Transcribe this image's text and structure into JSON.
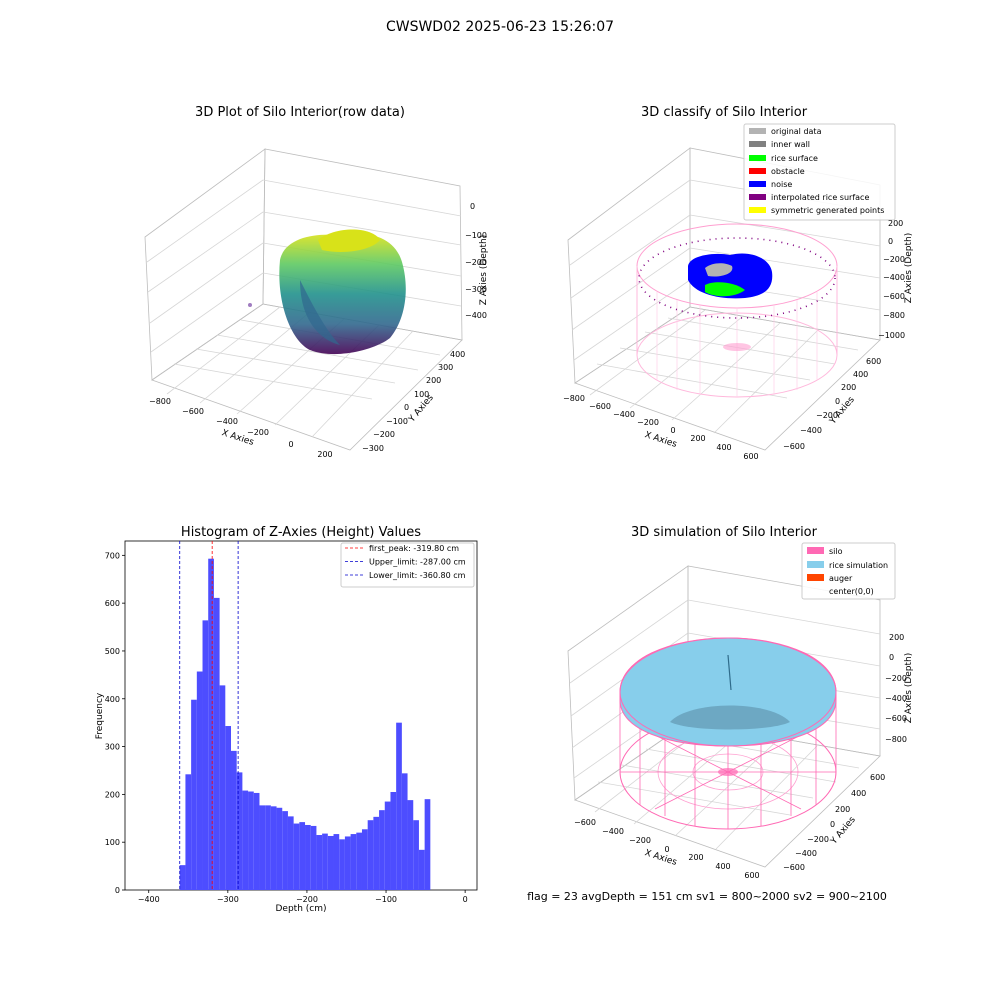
{
  "figure_title": "CWSWD02 2025-06-23 15:26:07",
  "colors": {
    "histogram_bars": "#4d4dff",
    "first_peak_line": "#ff0000",
    "limit_lines": "#0000cc",
    "silo_wireframe": "#ff69b4",
    "rice_simulation": "#87ceeb",
    "auger": "#ff4500"
  },
  "panels": {
    "raw": {
      "title": "3D Plot of Silo Interior(row data)",
      "xlabel": "X Axies",
      "ylabel": "Y Axies",
      "zlabel": "Z Axies (Depth)",
      "xticks": [
        "−800",
        "−600",
        "−400",
        "−200",
        "0",
        "200"
      ],
      "yticks": [
        "−300",
        "−200",
        "−100",
        "0",
        "100",
        "200",
        "300",
        "400"
      ],
      "zticks": [
        "0",
        "−100",
        "−200",
        "−300",
        "−400"
      ],
      "colormap": "viridis"
    },
    "classify": {
      "title": "3D classify of Silo Interior",
      "xlabel": "X Axies",
      "ylabel": "Y Axies",
      "zlabel": "Z Axies (Depth)",
      "xticks": [
        "−800",
        "−600",
        "−400",
        "−200",
        "0",
        "200",
        "400",
        "600"
      ],
      "yticks": [
        "−600",
        "−400",
        "−200",
        "0",
        "200",
        "400",
        "600"
      ],
      "zticks": [
        "200",
        "0",
        "−200",
        "−400",
        "−600",
        "−800",
        "−1000"
      ],
      "legend": [
        {
          "label": "original data",
          "color": "#b3b3b3"
        },
        {
          "label": "inner wall",
          "color": "#808080"
        },
        {
          "label": "rice surface",
          "color": "#00ff00"
        },
        {
          "label": "obstacle",
          "color": "#ff0000"
        },
        {
          "label": "noise",
          "color": "#0000ff"
        },
        {
          "label": "interpolated rice surface",
          "color": "#800080"
        },
        {
          "label": "symmetric generated points",
          "color": "#ffff00"
        }
      ]
    },
    "simulation": {
      "title": "3D simulation of Silo Interior",
      "xlabel": "X Axies",
      "ylabel": "Y Axies",
      "zlabel": "Z Axies (Depth)",
      "xticks": [
        "−600",
        "−400",
        "−200",
        "0",
        "200",
        "400",
        "600"
      ],
      "yticks": [
        "−600",
        "−400",
        "−200",
        "0",
        "200",
        "400",
        "600"
      ],
      "zticks": [
        "200",
        "0",
        "−200",
        "−400",
        "−600",
        "−800"
      ],
      "legend": [
        {
          "label": "silo",
          "color": "#ff69b4"
        },
        {
          "label": "rice simulation",
          "color": "#87ceeb"
        },
        {
          "label": "auger",
          "color": "#ff4500"
        },
        {
          "label": "center(0,0)",
          "color": ""
        }
      ],
      "footer": "flag = 23   avgDepth = 151 cm   sv1 = 800~2000   sv2 = 900~2100"
    }
  },
  "chart_data": {
    "type": "bar",
    "title": "Histogram of Z-Axies (Height) Values",
    "xlabel": "Depth (cm)",
    "ylabel": "Frequency",
    "xlim": [
      -430,
      15
    ],
    "ylim": [
      0,
      730
    ],
    "xticks": [
      -400,
      -300,
      -200,
      -100,
      0
    ],
    "yticks": [
      0,
      100,
      200,
      300,
      400,
      500,
      600,
      700
    ],
    "bin_start": -360.8,
    "bin_width": 7.2,
    "values": [
      52,
      242,
      398,
      457,
      564,
      693,
      611,
      428,
      343,
      291,
      246,
      208,
      206,
      203,
      177,
      177,
      175,
      172,
      165,
      154,
      139,
      142,
      136,
      134,
      115,
      118,
      113,
      117,
      106,
      112,
      117,
      120,
      127,
      146,
      153,
      167,
      185,
      205,
      350,
      244,
      188,
      146,
      84,
      190
    ],
    "vlines": [
      {
        "label": "first_peak: -319.80 cm",
        "x": -319.8,
        "color": "#ff0000"
      },
      {
        "label": "Upper_limit: -287.00 cm",
        "x": -287.0,
        "color": "#0000cc"
      },
      {
        "label": "Lower_limit: -360.80 cm",
        "x": -360.8,
        "color": "#0000cc"
      }
    ]
  }
}
